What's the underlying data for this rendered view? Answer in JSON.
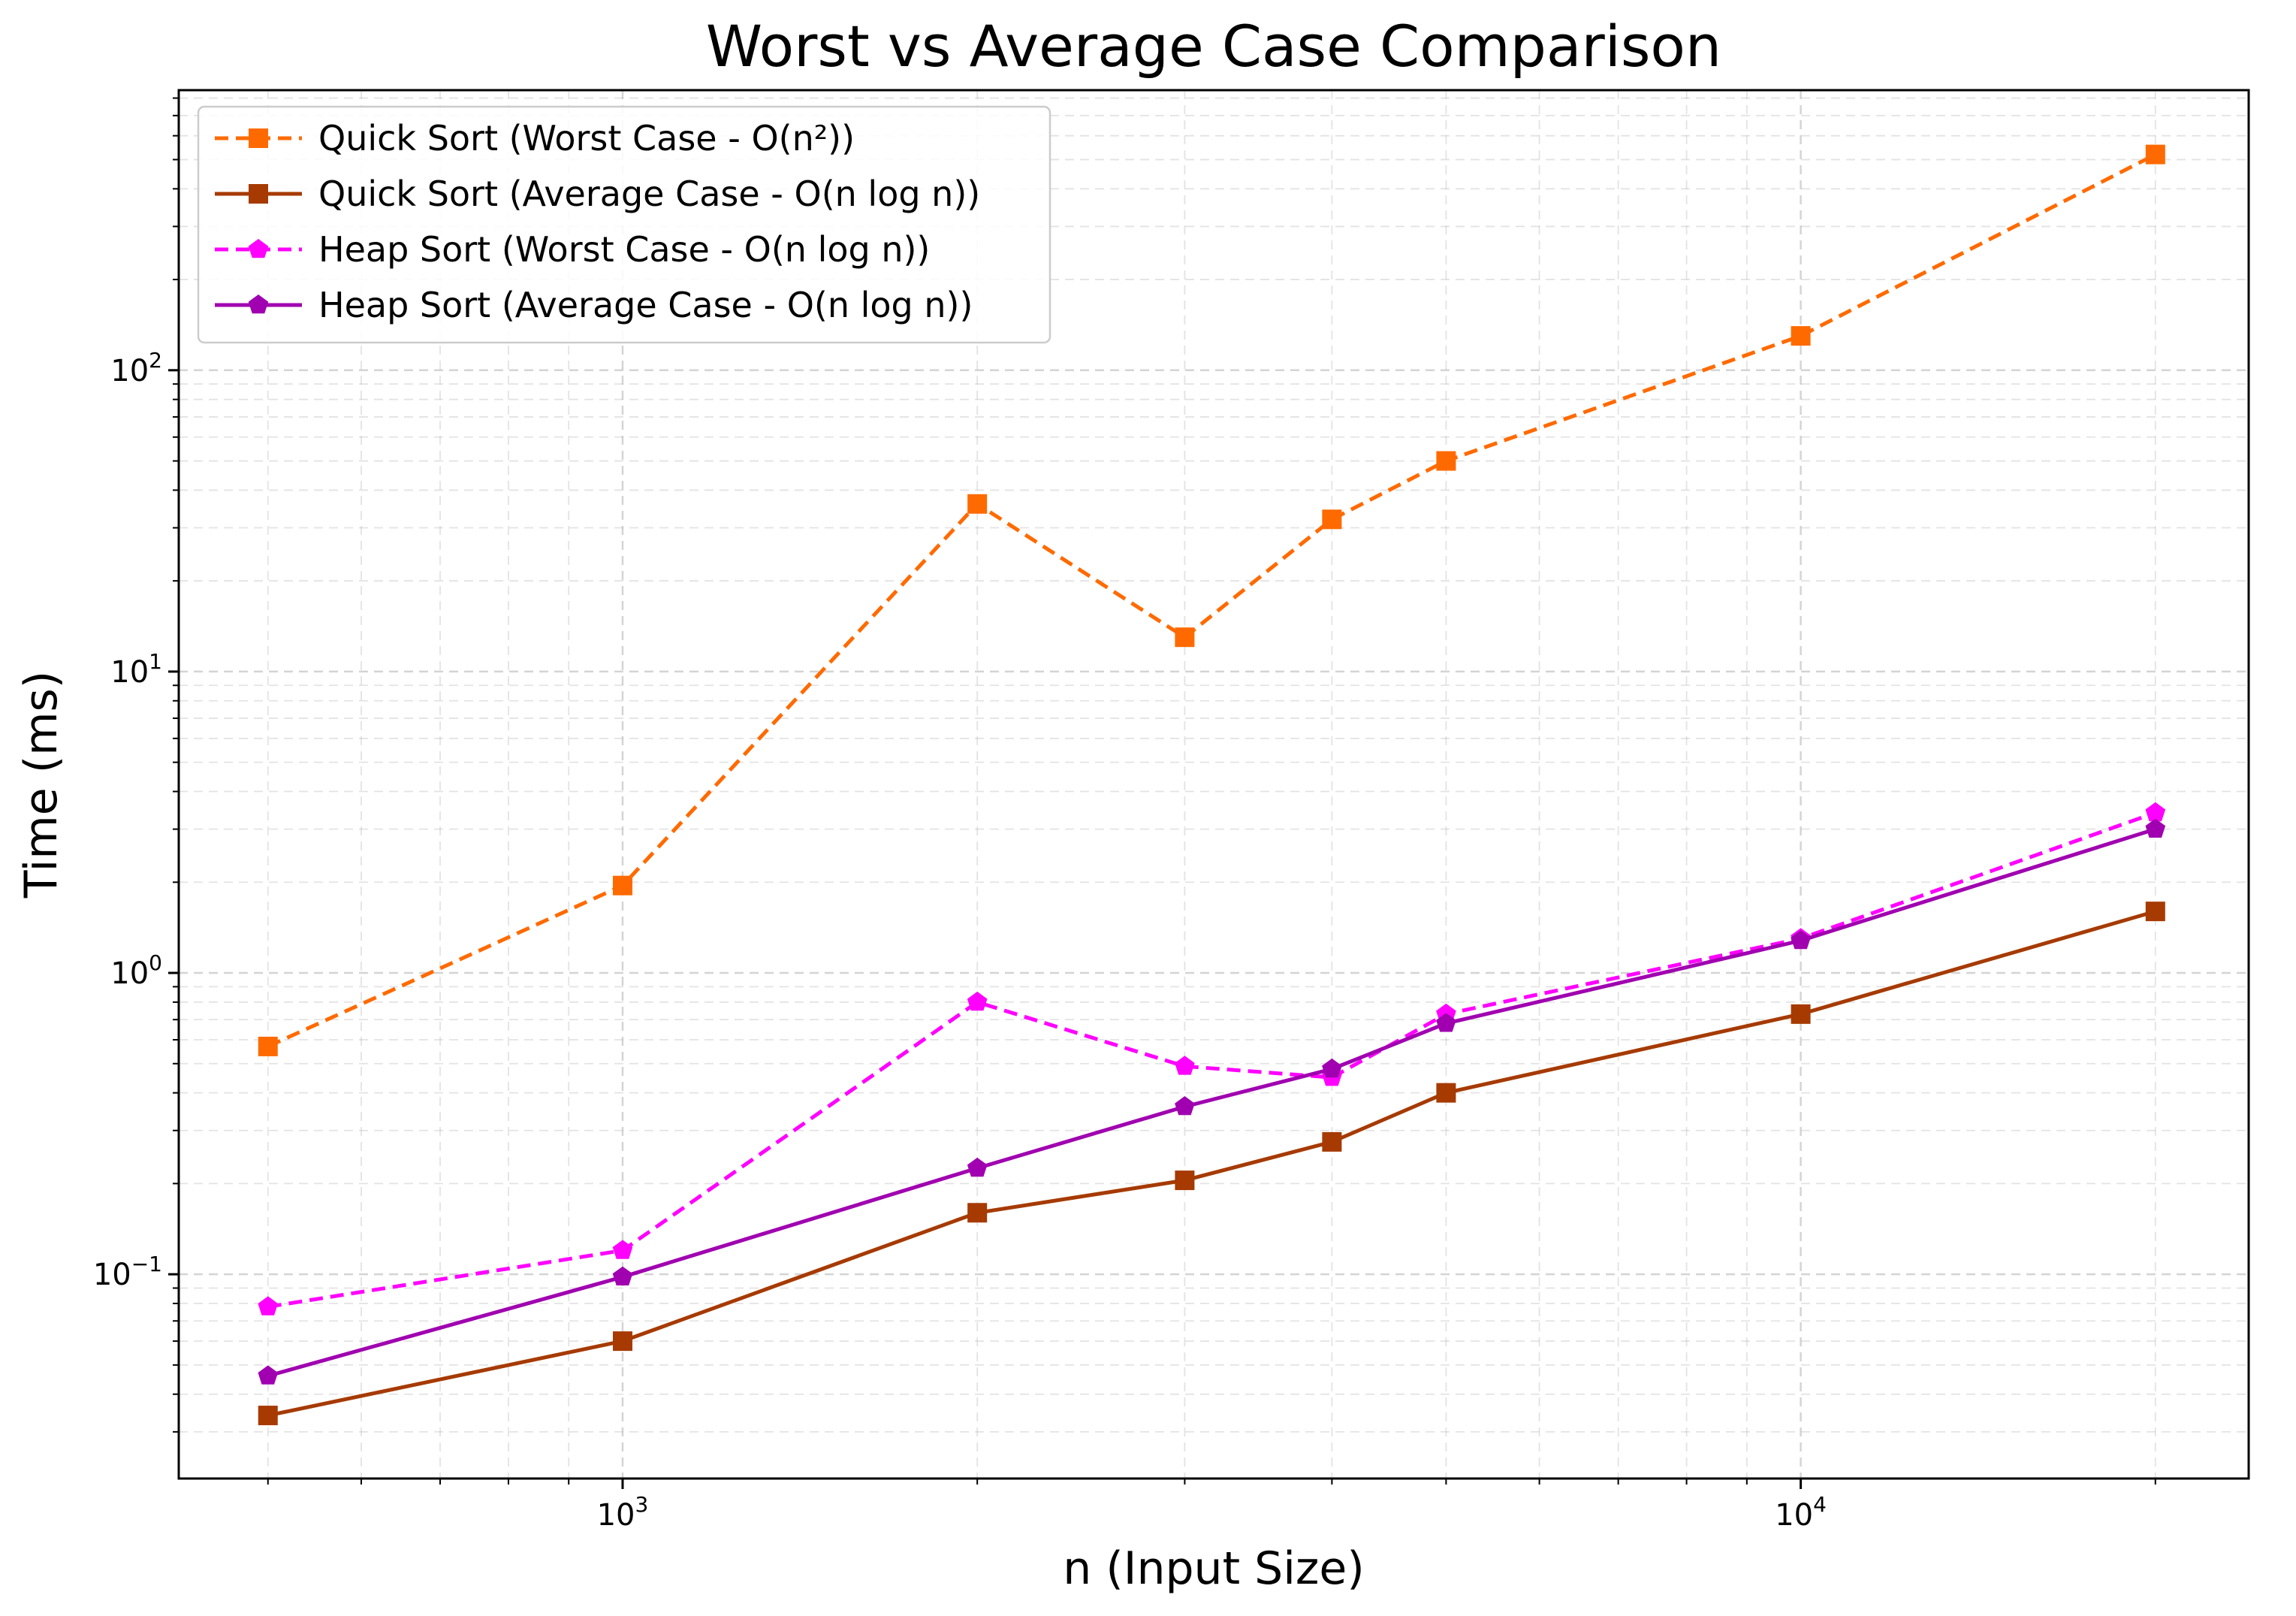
{
  "chart_data": {
    "type": "line",
    "title": "Worst vs Average Case Comparison",
    "xlabel": "n (Input Size)",
    "ylabel": "Time (ms)",
    "xscale": "log",
    "yscale": "log",
    "xlim": [
      420,
      24000
    ],
    "ylim": [
      0.021,
      850
    ],
    "x": [
      500,
      1000,
      2000,
      3000,
      4000,
      5000,
      10000,
      20000
    ],
    "x_ticks": [
      {
        "value": 1000,
        "base": "10",
        "exp": "3"
      },
      {
        "value": 10000,
        "base": "10",
        "exp": "4"
      }
    ],
    "y_ticks": [
      {
        "value": 0.1,
        "base": "10",
        "exp": "−1"
      },
      {
        "value": 1,
        "base": "10",
        "exp": "0"
      },
      {
        "value": 10,
        "base": "10",
        "exp": "1"
      },
      {
        "value": 100,
        "base": "10",
        "exp": "2"
      }
    ],
    "grid": true,
    "legend_position": "top-left",
    "series": [
      {
        "name": "Quick Sort (Worst Case - O(n²))",
        "color": "#ff6a00",
        "line_style": "dashed",
        "marker": "square",
        "values": [
          0.57,
          1.95,
          36,
          13,
          32,
          50,
          130,
          520
        ]
      },
      {
        "name": "Quick Sort (Average Case - O(n log n))",
        "color": "#a63a00",
        "line_style": "solid",
        "marker": "square",
        "values": [
          0.034,
          0.06,
          0.16,
          0.205,
          0.275,
          0.4,
          0.73,
          1.6
        ]
      },
      {
        "name": "Heap Sort (Worst Case - O(n log n))",
        "color": "#ff00ff",
        "line_style": "dashed",
        "marker": "pentagon",
        "values": [
          0.078,
          0.12,
          0.8,
          0.49,
          0.45,
          0.73,
          1.3,
          3.4
        ]
      },
      {
        "name": "Heap Sort (Average Case - O(n log n))",
        "color": "#a000b0",
        "line_style": "solid",
        "marker": "pentagon",
        "values": [
          0.046,
          0.098,
          0.225,
          0.36,
          0.48,
          0.68,
          1.28,
          3.0
        ]
      }
    ]
  }
}
